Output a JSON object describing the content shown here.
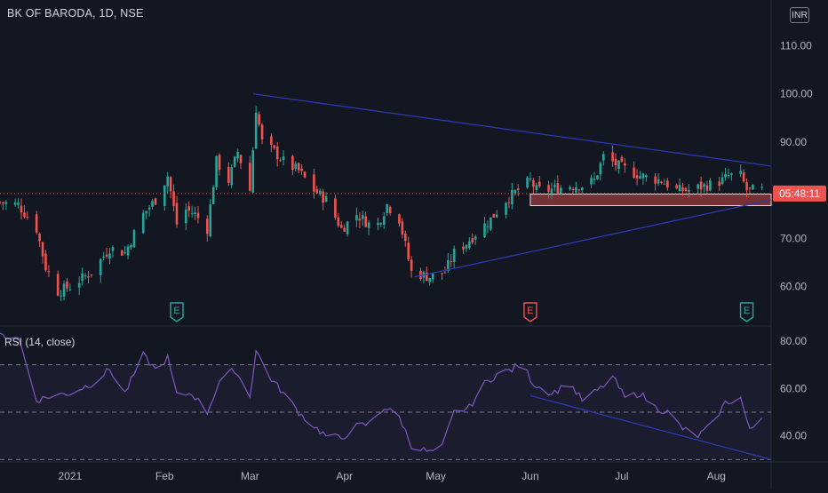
{
  "header": {
    "symbol_title": "BK OF BARODA, 1D, NSE",
    "currency_label": "INR"
  },
  "rsi_panel": {
    "title": "RSI (14, close)"
  },
  "price_badge": "05:48:11",
  "event_markers": [
    {
      "label": "E",
      "date": "2021-02-05",
      "color": "#26a69a"
    },
    {
      "label": "E",
      "date": "2021-06-01",
      "color": "#ef5350"
    },
    {
      "label": "E",
      "date": "2021-08-11",
      "color": "#26a69a"
    }
  ],
  "colors": {
    "up": "#26a69a",
    "down": "#ef5350",
    "trendline": "#2b3ab0",
    "rsi_line": "#7e57c2",
    "background": "#131722"
  },
  "chart_data": [
    {
      "type": "candlestick",
      "title": "BK OF BARODA, 1D, NSE",
      "ylim": [
        52,
        118
      ],
      "yticks": [
        60,
        70,
        80,
        90,
        100,
        110
      ],
      "ytick_labels": [
        "60.00",
        "70.00",
        "80.00",
        "90.00",
        "100.00",
        "110.00"
      ],
      "xlim": [
        "2020-12-09",
        "2021-08-19"
      ],
      "x_ticks": [
        {
          "date": "2021-01-01",
          "label": "2021"
        },
        {
          "date": "2021-02-01",
          "label": "Feb"
        },
        {
          "date": "2021-03-01",
          "label": "Mar"
        },
        {
          "date": "2021-04-01",
          "label": "Apr"
        },
        {
          "date": "2021-05-01",
          "label": "May"
        },
        {
          "date": "2021-06-01",
          "label": "Jun"
        },
        {
          "date": "2021-07-01",
          "label": "Jul"
        },
        {
          "date": "2021-08-01",
          "label": "Aug"
        }
      ],
      "close_anchors": [
        [
          "2020-12-09",
          77.5
        ],
        [
          "2020-12-15",
          77
        ],
        [
          "2020-12-21",
          72
        ],
        [
          "2020-12-24",
          64
        ],
        [
          "2020-12-28",
          59
        ],
        [
          "2021-01-01",
          60
        ],
        [
          "2021-01-08",
          63
        ],
        [
          "2021-01-14",
          68
        ],
        [
          "2021-01-19",
          67
        ],
        [
          "2021-01-25",
          75
        ],
        [
          "2021-01-29",
          78
        ],
        [
          "2021-02-02",
          83
        ],
        [
          "2021-02-05",
          73
        ],
        [
          "2021-02-08",
          76
        ],
        [
          "2021-02-11",
          75
        ],
        [
          "2021-02-15",
          72
        ],
        [
          "2021-02-18",
          86
        ],
        [
          "2021-02-22",
          82
        ],
        [
          "2021-02-25",
          88
        ],
        [
          "2021-03-01",
          80
        ],
        [
          "2021-03-03",
          97
        ],
        [
          "2021-03-05",
          90
        ],
        [
          "2021-03-09",
          88
        ],
        [
          "2021-03-12",
          86
        ],
        [
          "2021-03-17",
          84
        ],
        [
          "2021-03-22",
          80
        ],
        [
          "2021-03-26",
          78
        ],
        [
          "2021-03-31",
          72
        ],
        [
          "2021-04-05",
          75
        ],
        [
          "2021-04-09",
          73
        ],
        [
          "2021-04-12",
          73
        ],
        [
          "2021-04-15",
          77
        ],
        [
          "2021-04-19",
          74
        ],
        [
          "2021-04-23",
          63
        ],
        [
          "2021-04-29",
          62
        ],
        [
          "2021-05-04",
          63
        ],
        [
          "2021-05-07",
          67
        ],
        [
          "2021-05-11",
          69
        ],
        [
          "2021-05-14",
          71
        ],
        [
          "2021-05-19",
          74
        ],
        [
          "2021-05-24",
          78
        ],
        [
          "2021-05-28",
          80
        ],
        [
          "2021-06-01",
          82
        ],
        [
          "2021-06-03",
          80
        ],
        [
          "2021-06-07",
          80
        ],
        [
          "2021-06-14",
          81
        ],
        [
          "2021-06-18",
          81
        ],
        [
          "2021-06-22",
          82
        ],
        [
          "2021-06-25",
          87
        ],
        [
          "2021-06-30",
          85
        ],
        [
          "2021-07-07",
          83
        ],
        [
          "2021-07-14",
          82
        ],
        [
          "2021-07-19",
          80
        ],
        [
          "2021-07-23",
          80
        ],
        [
          "2021-07-29",
          81
        ],
        [
          "2021-08-03",
          82
        ],
        [
          "2021-08-05",
          83
        ],
        [
          "2021-08-09",
          83
        ],
        [
          "2021-08-11",
          80
        ],
        [
          "2021-08-13",
          80
        ]
      ],
      "horizontal_zone": {
        "from": "2021-06-01",
        "y_low": 76.8,
        "y_high": 79.2,
        "color": "#ef5350"
      },
      "trendlines": [
        {
          "start": [
            "2021-03-02",
            100
          ],
          "end": [
            "2021-08-19",
            85
          ]
        },
        {
          "start": [
            "2021-04-24",
            62
          ],
          "end": [
            "2021-08-19",
            78
          ]
        }
      ],
      "last_price_label": "05:48:11",
      "last_price_y": 79.3
    },
    {
      "type": "line",
      "title": "RSI (14, close)",
      "ylim": [
        29,
        86
      ],
      "yticks": [
        40,
        60,
        80
      ],
      "ytick_labels": [
        "40.00",
        "60.00",
        "80.00"
      ],
      "bands": [
        70,
        50,
        30
      ],
      "rsi_anchors": [
        [
          "2020-12-09",
          82
        ],
        [
          "2020-12-15",
          82
        ],
        [
          "2020-12-21",
          55
        ],
        [
          "2020-12-26",
          57
        ],
        [
          "2021-01-01",
          58
        ],
        [
          "2021-01-08",
          62
        ],
        [
          "2021-01-14",
          68
        ],
        [
          "2021-01-19",
          58
        ],
        [
          "2021-01-25",
          74
        ],
        [
          "2021-01-29",
          68
        ],
        [
          "2021-02-02",
          73
        ],
        [
          "2021-02-05",
          57
        ],
        [
          "2021-02-10",
          58
        ],
        [
          "2021-02-15",
          50
        ],
        [
          "2021-02-19",
          63
        ],
        [
          "2021-02-24",
          68
        ],
        [
          "2021-03-01",
          57
        ],
        [
          "2021-03-03",
          76
        ],
        [
          "2021-03-08",
          64
        ],
        [
          "2021-03-12",
          58
        ],
        [
          "2021-03-17",
          50
        ],
        [
          "2021-03-22",
          44
        ],
        [
          "2021-03-26",
          40
        ],
        [
          "2021-03-31",
          39
        ],
        [
          "2021-04-05",
          44
        ],
        [
          "2021-04-09",
          45
        ],
        [
          "2021-04-14",
          52
        ],
        [
          "2021-04-19",
          48
        ],
        [
          "2021-04-23",
          36
        ],
        [
          "2021-04-29",
          33
        ],
        [
          "2021-05-03",
          35
        ],
        [
          "2021-05-07",
          50
        ],
        [
          "2021-05-12",
          52
        ],
        [
          "2021-05-17",
          62
        ],
        [
          "2021-05-21",
          66
        ],
        [
          "2021-05-26",
          68
        ],
        [
          "2021-05-29",
          71
        ],
        [
          "2021-06-02",
          62
        ],
        [
          "2021-06-08",
          58
        ],
        [
          "2021-06-14",
          62
        ],
        [
          "2021-06-18",
          55
        ],
        [
          "2021-06-24",
          60
        ],
        [
          "2021-06-28",
          65
        ],
        [
          "2021-07-02",
          56
        ],
        [
          "2021-07-07",
          58
        ],
        [
          "2021-07-12",
          52
        ],
        [
          "2021-07-16",
          50
        ],
        [
          "2021-07-21",
          43
        ],
        [
          "2021-07-26",
          40
        ],
        [
          "2021-07-30",
          44
        ],
        [
          "2021-08-04",
          54
        ],
        [
          "2021-08-09",
          56
        ],
        [
          "2021-08-12",
          42
        ],
        [
          "2021-08-16",
          48
        ]
      ],
      "trendline": {
        "start": [
          "2021-06-01",
          57
        ],
        "end": [
          "2021-08-19",
          30
        ]
      }
    }
  ]
}
